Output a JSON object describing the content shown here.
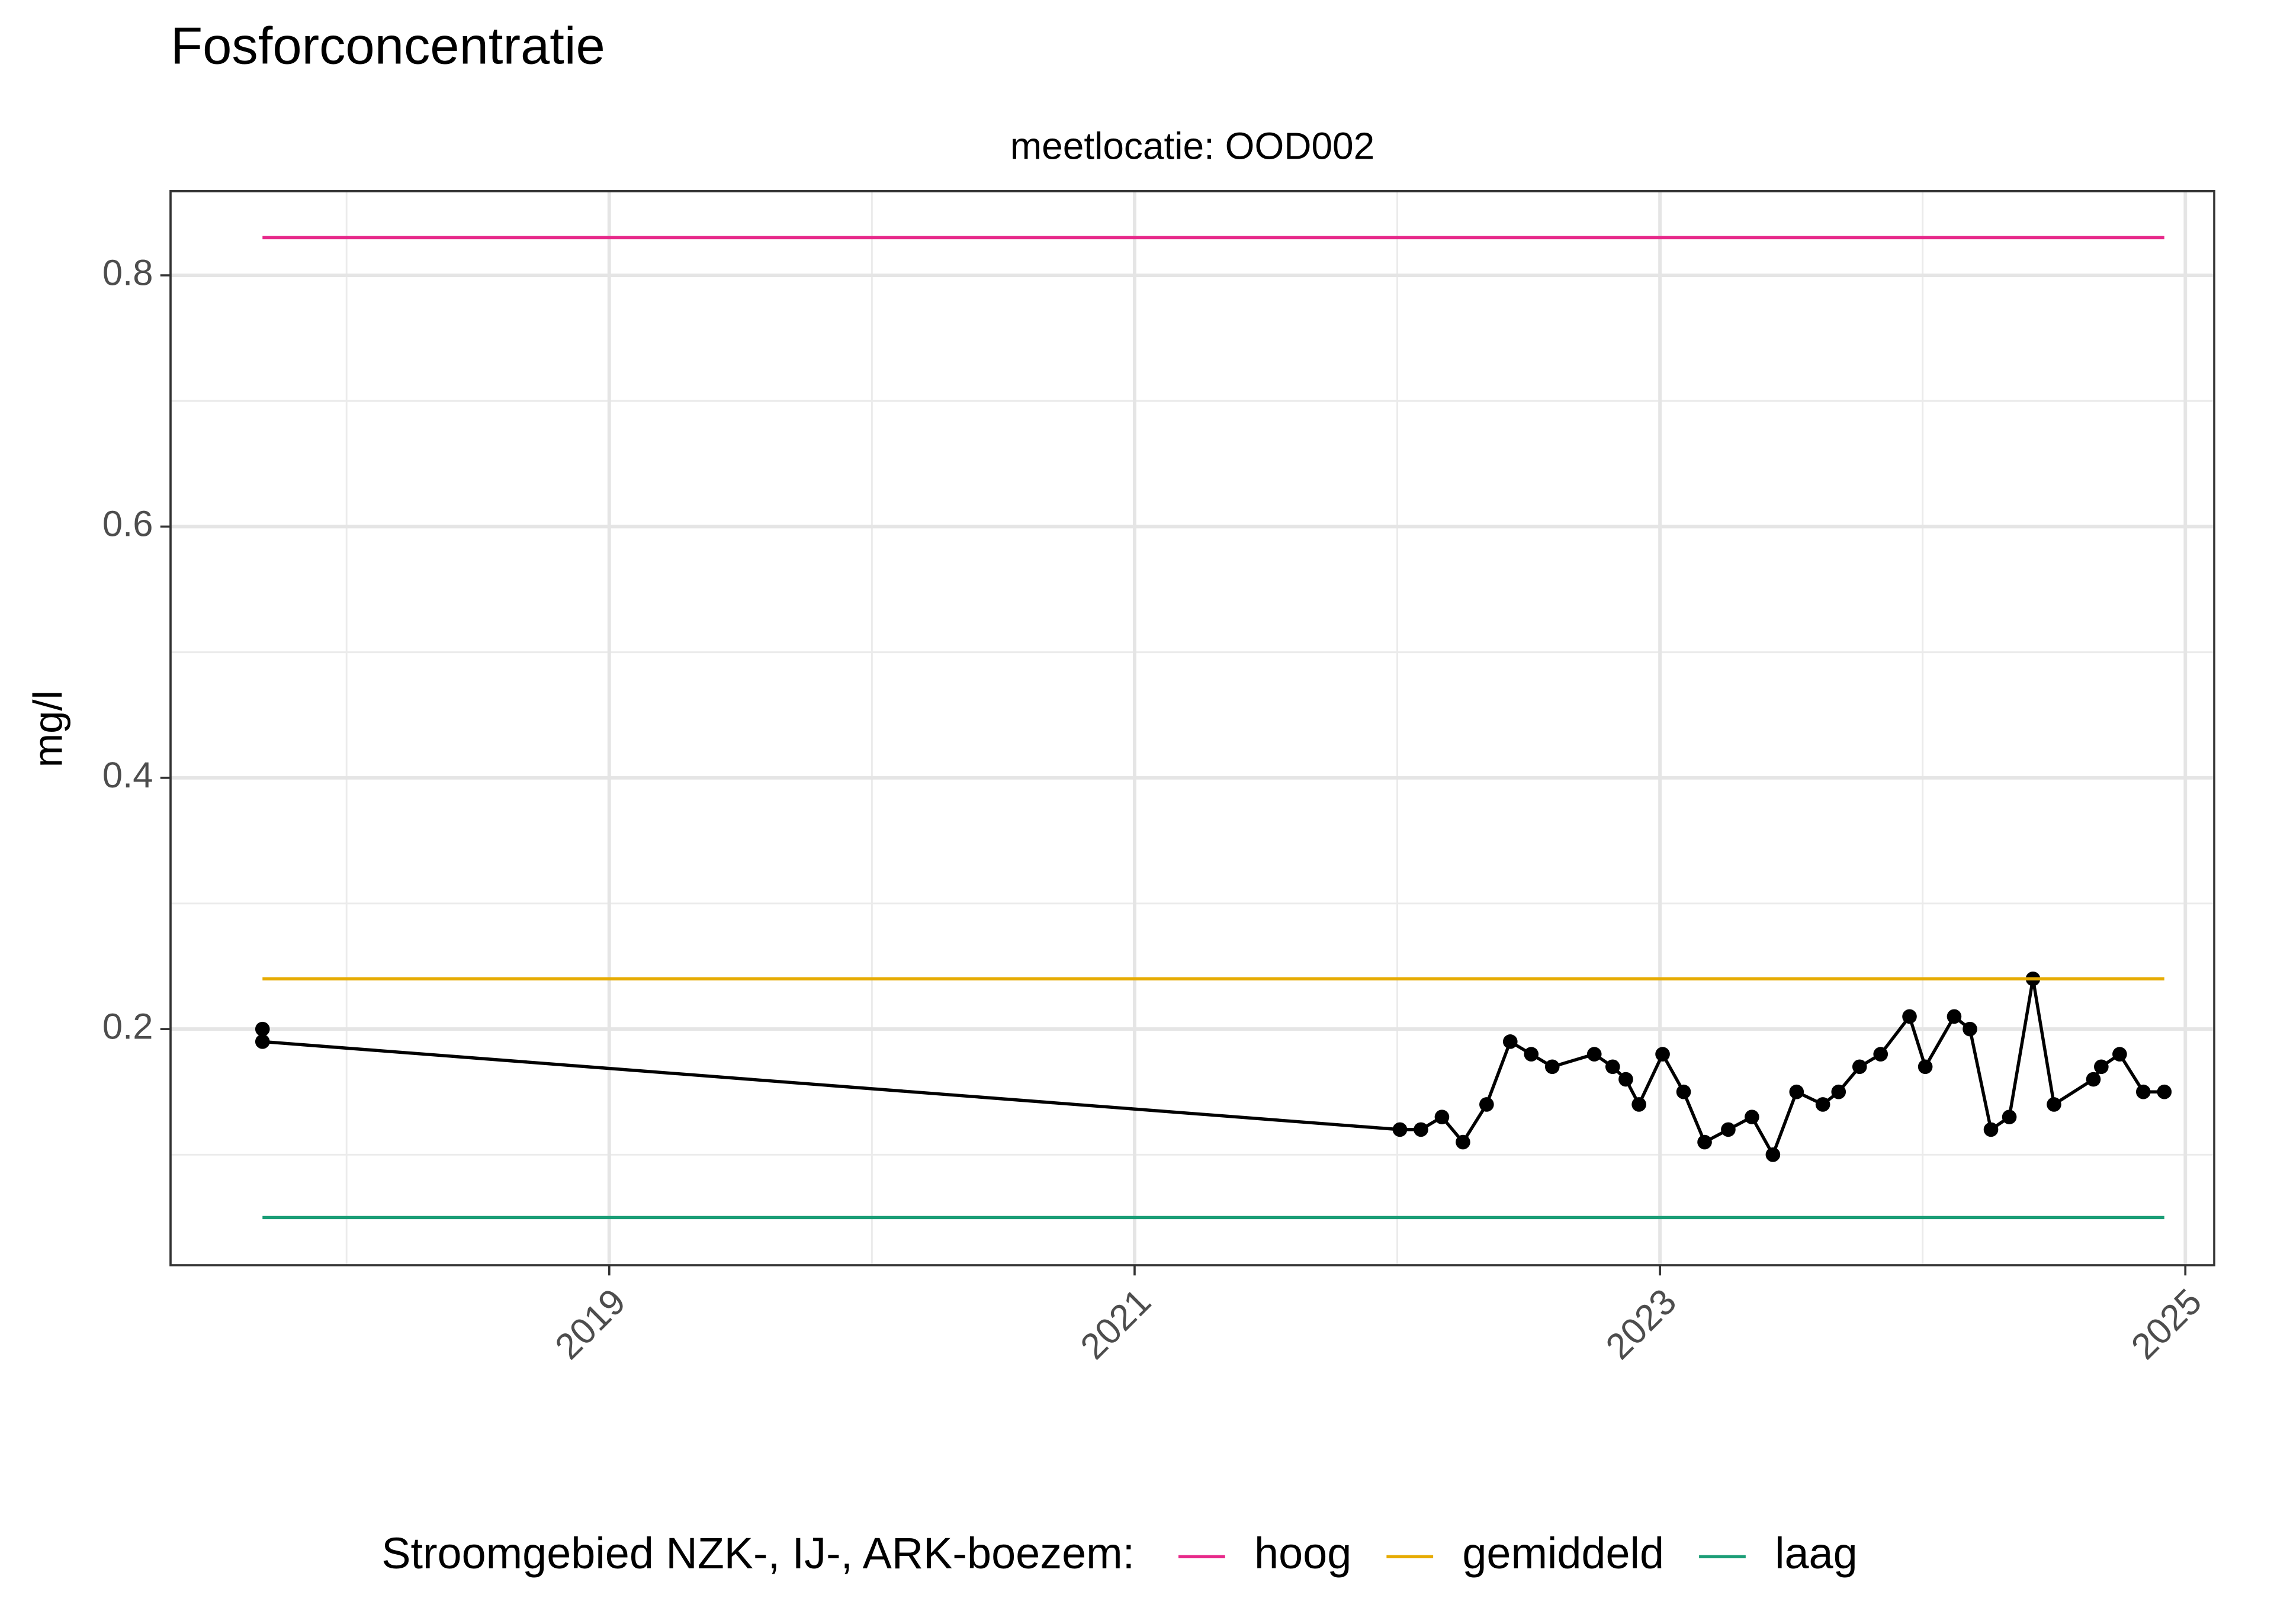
{
  "chart_data": {
    "type": "line",
    "title": "Fosforconcentratie",
    "subtitle": "meetlocatie: OOD002",
    "y_label": "mg/l",
    "legend_title": "Stroomgebied NZK-, IJ-, ARK-boezem:",
    "legend_position": "bottom",
    "grid": true,
    "xlim": [
      2017.33,
      2025.11
    ],
    "xticks": [
      2019,
      2021,
      2023,
      2025
    ],
    "x_minor_ticks": [
      2018,
      2020,
      2022,
      2024
    ],
    "ylim": [
      0.012,
      0.867
    ],
    "yticks": [
      0.2,
      0.4,
      0.6,
      0.8
    ],
    "y_minor_ticks": [
      0.1,
      0.3,
      0.5,
      0.7
    ],
    "series": [
      {
        "color": "#000000",
        "markers": true,
        "x": [
          2017.68,
          2017.68,
          2022.01,
          2022.09,
          2022.17,
          2022.25,
          2022.34,
          2022.43,
          2022.51,
          2022.59,
          2022.75,
          2022.82,
          2022.87,
          2022.92,
          2023.01,
          2023.09,
          2023.17,
          2023.26,
          2023.35,
          2023.43,
          2023.52,
          2023.62,
          2023.68,
          2023.76,
          2023.84,
          2023.95,
          2024.01,
          2024.12,
          2024.18,
          2024.26,
          2024.33,
          2024.42,
          2024.5,
          2024.65,
          2024.68,
          2024.75,
          2024.84,
          2024.92
        ],
        "values": [
          0.2,
          0.19,
          0.12,
          0.12,
          0.13,
          0.11,
          0.14,
          0.19,
          0.18,
          0.17,
          0.18,
          0.17,
          0.16,
          0.14,
          0.18,
          0.15,
          0.11,
          0.12,
          0.13,
          0.1,
          0.15,
          0.14,
          0.15,
          0.17,
          0.18,
          0.21,
          0.17,
          0.21,
          0.2,
          0.12,
          0.13,
          0.24,
          0.14,
          0.16,
          0.17,
          0.18,
          0.15,
          0.15
        ]
      },
      {
        "name": "hoog",
        "color": "#e7298a",
        "markers": false,
        "x": [
          2017.68,
          2024.92
        ],
        "values": [
          0.83,
          0.83
        ]
      },
      {
        "name": "gemiddeld",
        "color": "#e6ab02",
        "markers": false,
        "x": [
          2017.68,
          2024.92
        ],
        "values": [
          0.24,
          0.24
        ]
      },
      {
        "name": "laag",
        "color": "#1b9e77",
        "markers": false,
        "x": [
          2017.68,
          2024.92
        ],
        "values": [
          0.05,
          0.05
        ]
      }
    ]
  }
}
